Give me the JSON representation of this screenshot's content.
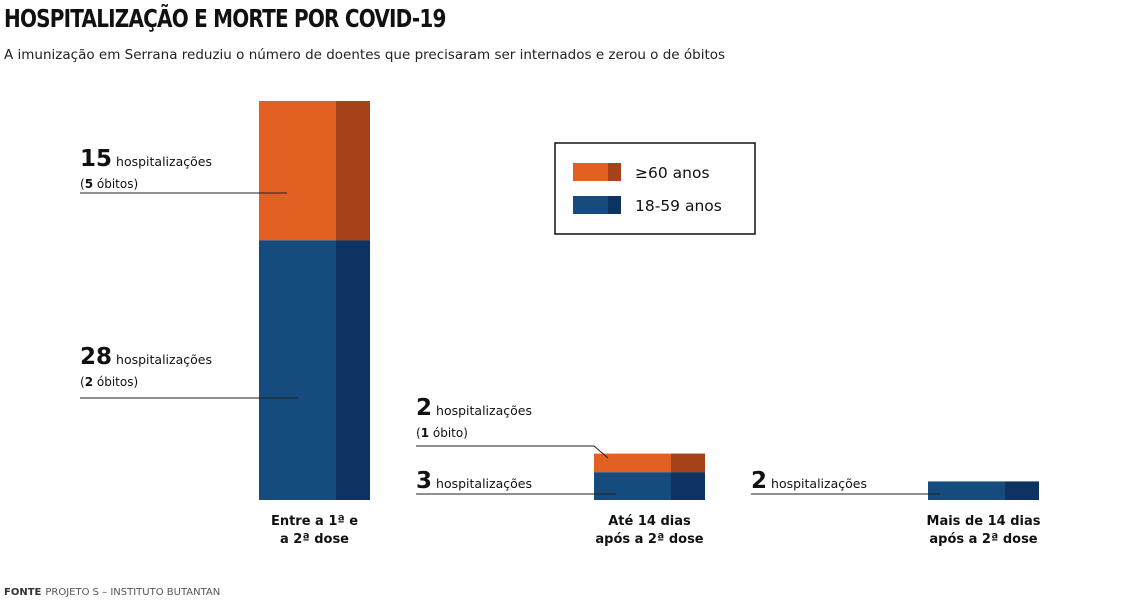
{
  "title": "HOSPITALIZAÇÃO E MORTE POR COVID-19",
  "subtitle": "A imunização em Serrana reduziu o número de doentes que precisaram ser internados e zerou o de óbitos",
  "source": {
    "label": "FONTE",
    "text": "PROJETO S – INSTITUTO BUTANTAN"
  },
  "colors": {
    "older": "#e26022",
    "older_dark": "#a5421a",
    "younger": "#164b7e",
    "younger_dark": "#0c3361"
  },
  "legend": [
    "≥60 anos",
    "18-59 anos"
  ],
  "chart_data": {
    "type": "bar",
    "stacked": true,
    "categories": [
      [
        "Entre a 1ª e",
        "a 2ª dose"
      ],
      [
        "Até 14 dias",
        "após a 2ª dose"
      ],
      [
        "Mais de 14 dias",
        "após a 2ª dose"
      ]
    ],
    "series": [
      {
        "name": "18-59 anos",
        "values": [
          28,
          3,
          2
        ],
        "deaths": [
          2,
          0,
          0
        ]
      },
      {
        "name": "≥60 anos",
        "values": [
          15,
          2,
          0
        ],
        "deaths": [
          5,
          1,
          0
        ]
      }
    ],
    "annotations": [
      {
        "bar": 0,
        "series": "≥60 anos",
        "number": "15",
        "label": "hospitalizações",
        "note": [
          "(",
          "5",
          " óbitos)"
        ]
      },
      {
        "bar": 0,
        "series": "18-59 anos",
        "number": "28",
        "label": "hospitalizações",
        "note": [
          "(",
          "2",
          " óbitos)"
        ]
      },
      {
        "bar": 1,
        "series": "≥60 anos",
        "number": "2",
        "label": "hospitalizações",
        "note": [
          "(",
          "1",
          " óbito)"
        ]
      },
      {
        "bar": 1,
        "series": "18-59 anos",
        "number": "3",
        "label": "hospitalizações",
        "note": null
      },
      {
        "bar": 2,
        "series": "18-59 anos",
        "number": "2",
        "label": "hospitalizações",
        "note": null
      }
    ]
  }
}
